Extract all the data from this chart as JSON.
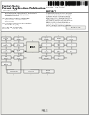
{
  "page_bg": "#e8e8e4",
  "white": "#ffffff",
  "text_color": "#222222",
  "light_text": "#444444",
  "barcode_color": "#111111",
  "box_edge": "#555555",
  "box_fill": "#f0f0ee",
  "arrow_color": "#333333",
  "header_bg": "#d0d0cc",
  "sep_color": "#666666",
  "diagram_bg": "#dcdcd8"
}
